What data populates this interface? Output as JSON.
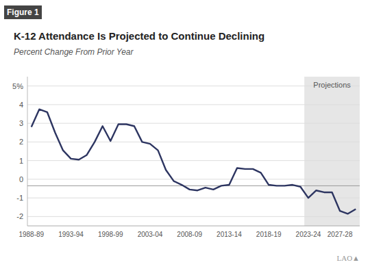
{
  "chart_data": {
    "type": "line",
    "title": "K-12 Attendance Is Projected to Continue Declining",
    "subtitle": "Percent Change From Prior Year",
    "figure_label": "Figure 1",
    "projection_label": "Projections",
    "projection_from": "2023-24",
    "logo": "LAO▲",
    "reference_line": -0.35,
    "color": "#2d3561",
    "categories": [
      "1988-89",
      null,
      null,
      null,
      null,
      "1993-94",
      null,
      null,
      null,
      null,
      "1998-99",
      null,
      null,
      null,
      null,
      "2003-04",
      null,
      null,
      null,
      null,
      "2008-09",
      null,
      null,
      null,
      null,
      "2013-14",
      null,
      null,
      null,
      null,
      "2018-19",
      null,
      null,
      null,
      null,
      "2023-24",
      null,
      null,
      null,
      "2027-28",
      null,
      null
    ],
    "values": [
      2.8,
      3.75,
      3.6,
      2.5,
      1.55,
      1.1,
      1.05,
      1.3,
      2.0,
      2.85,
      2.05,
      2.95,
      2.95,
      2.85,
      2.0,
      1.9,
      1.55,
      0.5,
      -0.1,
      -0.3,
      -0.55,
      -0.6,
      -0.45,
      -0.55,
      -0.35,
      -0.3,
      0.6,
      0.55,
      0.55,
      0.35,
      -0.3,
      -0.35,
      -0.35,
      -0.3,
      -0.4,
      -1.0,
      -0.6,
      -0.7,
      -0.7,
      -1.7,
      -1.85,
      -1.6
    ],
    "ylim": [
      -2.5,
      5.5
    ],
    "yticks": [
      -2,
      -1,
      0,
      1,
      2,
      3,
      4,
      {
        "value": 5,
        "label": "5%"
      }
    ],
    "grid": true
  }
}
